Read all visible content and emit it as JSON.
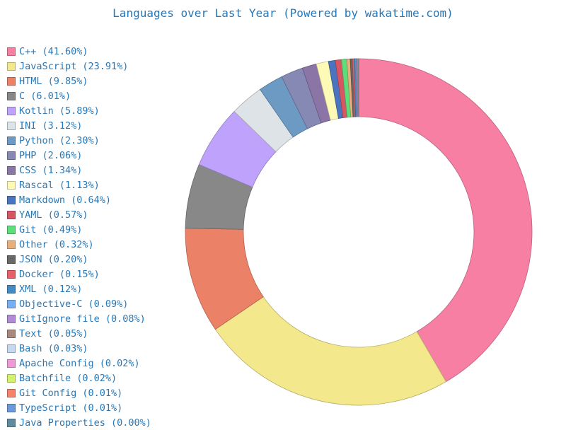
{
  "chart_data": {
    "type": "pie",
    "subtype": "donut",
    "title": "Languages over Last Year (Powered by wakatime.com)",
    "legend_position": "left",
    "slices": [
      {
        "label": "C++ (41.60%)",
        "name": "C++",
        "value": 41.6,
        "color": "#f77fa4"
      },
      {
        "label": "JavaScript (23.91%)",
        "name": "JavaScript",
        "value": 23.91,
        "color": "#f3e88c"
      },
      {
        "label": "HTML (9.85%)",
        "name": "HTML",
        "value": 9.85,
        "color": "#eb8166"
      },
      {
        "label": "C (6.01%)",
        "name": "C",
        "value": 6.01,
        "color": "#888888"
      },
      {
        "label": "Kotlin (5.89%)",
        "name": "Kotlin",
        "value": 5.89,
        "color": "#bea2fb"
      },
      {
        "label": "INI (3.12%)",
        "name": "INI",
        "value": 3.12,
        "color": "#dde3e6"
      },
      {
        "label": "Python (2.30%)",
        "name": "Python",
        "value": 2.3,
        "color": "#6c9ac2"
      },
      {
        "label": "PHP (2.06%)",
        "name": "PHP",
        "value": 2.06,
        "color": "#8589b3"
      },
      {
        "label": "CSS (1.34%)",
        "name": "CSS",
        "value": 1.34,
        "color": "#8a75a6"
      },
      {
        "label": "Rascal (1.13%)",
        "name": "Rascal",
        "value": 1.13,
        "color": "#fdfab7"
      },
      {
        "label": "Markdown (0.64%)",
        "name": "Markdown",
        "value": 0.64,
        "color": "#4a74bf"
      },
      {
        "label": "YAML (0.57%)",
        "name": "YAML",
        "value": 0.57,
        "color": "#d85664"
      },
      {
        "label": "Git (0.49%)",
        "name": "Git",
        "value": 0.49,
        "color": "#5cde7a"
      },
      {
        "label": "Other (0.32%)",
        "name": "Other",
        "value": 0.32,
        "color": "#e5b07c"
      },
      {
        "label": "JSON (0.20%)",
        "name": "JSON",
        "value": 0.2,
        "color": "#686868"
      },
      {
        "label": "Docker (0.15%)",
        "name": "Docker",
        "value": 0.15,
        "color": "#e66069"
      },
      {
        "label": "XML (0.12%)",
        "name": "XML",
        "value": 0.12,
        "color": "#438bc2"
      },
      {
        "label": "Objective-C (0.09%)",
        "name": "Objective-C",
        "value": 0.09,
        "color": "#77aef5"
      },
      {
        "label": "GitIgnore file (0.08%)",
        "name": "GitIgnore file",
        "value": 0.08,
        "color": "#b18bd6"
      },
      {
        "label": "Text (0.05%)",
        "name": "Text",
        "value": 0.05,
        "color": "#a88a7c"
      },
      {
        "label": "Bash (0.03%)",
        "name": "Bash",
        "value": 0.03,
        "color": "#c5d8f0"
      },
      {
        "label": "Apache Config (0.02%)",
        "name": "Apache Config",
        "value": 0.02,
        "color": "#ef9ad7"
      },
      {
        "label": "Batchfile (0.02%)",
        "name": "Batchfile",
        "value": 0.02,
        "color": "#d3f26b"
      },
      {
        "label": "Git Config (0.01%)",
        "name": "Git Config",
        "value": 0.01,
        "color": "#f5826a"
      },
      {
        "label": "TypeScript (0.01%)",
        "name": "TypeScript",
        "value": 0.01,
        "color": "#6a99dd"
      },
      {
        "label": "Java Properties (0.00%)",
        "name": "Java Properties",
        "value": 0.0,
        "color": "#5f8b9c"
      }
    ]
  }
}
